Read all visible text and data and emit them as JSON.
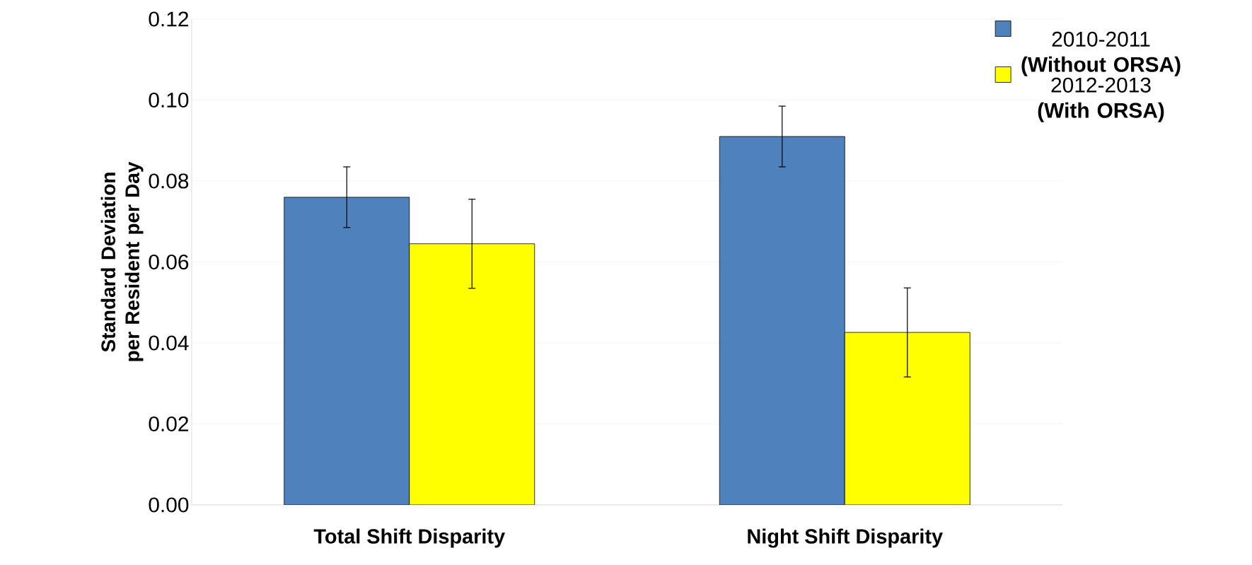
{
  "chart_data": {
    "type": "bar",
    "ylabel": "Standard Deviation per Resident per Day",
    "categories": [
      "Total Shift Disparity",
      "Night Shift Disparity"
    ],
    "series": [
      {
        "name": "2010-2011 **(Without ORSA)**",
        "color": "#4f81bd",
        "values": [
          0.076,
          0.091
        ],
        "errors": [
          0.0075,
          0.0075
        ]
      },
      {
        "name": "2012-2013 **(With ORSA)**",
        "color": "#ffff00",
        "values": [
          0.0645,
          0.0426
        ],
        "errors": [
          0.011,
          0.011
        ]
      }
    ],
    "ylim": [
      0,
      0.12
    ],
    "yticks": [
      {
        "value": 0,
        "label": "0.00"
      },
      {
        "value": 0.02,
        "label": "0.02"
      },
      {
        "value": 0.04,
        "label": "0.04"
      },
      {
        "value": 0.06,
        "label": "0.06"
      },
      {
        "value": 0.08,
        "label": "0.08"
      },
      {
        "value": 0.1,
        "label": "0.10"
      },
      {
        "value": 0.12,
        "label": "0.12"
      }
    ],
    "grid": "y",
    "legend": "top right"
  }
}
